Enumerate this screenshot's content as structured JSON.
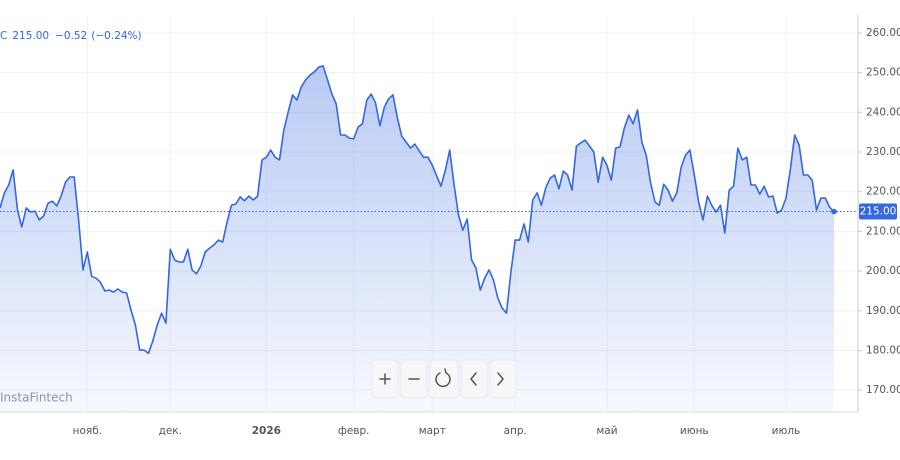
{
  "chart_data": {
    "type": "line",
    "header": {
      "prefix": "C",
      "close": "215.00",
      "change": "−0.52",
      "change_pct": "(−0.24%)"
    },
    "watermark": "InstaFintech",
    "last_value_label": "215.00",
    "color": "#3567e0",
    "grid": true,
    "categories": [
      null,
      null,
      null,
      null,
      null,
      null,
      null,
      null,
      null,
      null,
      null,
      null,
      null,
      null,
      null,
      null,
      null,
      null,
      null,
      null,
      "нояб.",
      null,
      null,
      null,
      null,
      null,
      null,
      null,
      null,
      null,
      null,
      null,
      null,
      null,
      null,
      null,
      null,
      null,
      null,
      "дек.",
      null,
      null,
      null,
      null,
      null,
      null,
      null,
      null,
      null,
      null,
      null,
      null,
      null,
      null,
      null,
      null,
      null,
      null,
      null,
      null,
      null,
      "2026",
      null,
      null,
      null,
      null,
      null,
      null,
      null,
      null,
      null,
      null,
      null,
      null,
      null,
      null,
      null,
      null,
      null,
      null,
      null,
      "февр.",
      null,
      null,
      null,
      null,
      null,
      null,
      null,
      null,
      null,
      null,
      null,
      null,
      null,
      null,
      null,
      null,
      null,
      "март",
      null,
      null,
      null,
      null,
      null,
      null,
      null,
      null,
      null,
      null,
      null,
      null,
      null,
      null,
      null,
      null,
      null,
      null,
      "апр.",
      null,
      null,
      null,
      null,
      null,
      null,
      null,
      null,
      null,
      null,
      null,
      null,
      null,
      null,
      null,
      null,
      null,
      null,
      null,
      null,
      "май",
      null,
      null,
      null,
      null,
      null,
      null,
      null,
      null,
      null,
      null,
      null,
      null,
      null,
      null,
      null,
      null,
      null,
      null,
      null,
      "июнь",
      null,
      null,
      null,
      null,
      null,
      null,
      null,
      null,
      null,
      null,
      null,
      null,
      null,
      null,
      null,
      null,
      null,
      null,
      null,
      null,
      "июль",
      null,
      null,
      null,
      null,
      null,
      null,
      null,
      null,
      null,
      null,
      null
    ],
    "values": [
      215.9,
      219.7,
      221.7,
      225.5,
      215.4,
      211.1,
      215.9,
      214.9,
      215.1,
      212.9,
      213.9,
      217.1,
      217.6,
      216.4,
      218.9,
      222.4,
      223.7,
      223.7,
      212.9,
      200.3,
      204.8,
      198.7,
      198.2,
      197.2,
      195.0,
      195.2,
      194.7,
      195.5,
      194.7,
      194.5,
      190.2,
      186.4,
      180.1,
      180.1,
      179.3,
      182.4,
      186.4,
      189.4,
      186.9,
      205.5,
      202.8,
      202.3,
      202.3,
      205.5,
      200.3,
      199.3,
      201.3,
      204.8,
      205.8,
      206.6,
      207.8,
      207.3,
      212.4,
      216.6,
      216.9,
      218.7,
      217.7,
      218.9,
      217.9,
      218.9,
      228.0,
      228.7,
      230.5,
      228.7,
      228.0,
      235.5,
      240.1,
      244.4,
      243.1,
      246.4,
      248.2,
      249.4,
      250.2,
      251.4,
      251.7,
      248.2,
      244.6,
      242.1,
      234.3,
      234.3,
      233.5,
      233.3,
      236.3,
      237.1,
      243.1,
      244.6,
      242.4,
      236.6,
      241.3,
      243.4,
      244.4,
      238.6,
      234.0,
      232.5,
      231.0,
      232.0,
      230.3,
      228.7,
      228.7,
      226.7,
      224.0,
      221.4,
      225.5,
      230.5,
      221.7,
      214.1,
      210.3,
      213.1,
      202.8,
      200.8,
      195.2,
      198.2,
      200.3,
      197.8,
      193.2,
      190.7,
      189.4,
      199.8,
      207.8,
      207.8,
      211.9,
      207.3,
      217.9,
      219.7,
      216.6,
      221.0,
      223.4,
      224.2,
      220.7,
      225.2,
      224.2,
      220.4,
      231.5,
      232.3,
      233.0,
      231.5,
      230.0,
      222.4,
      228.7,
      226.7,
      222.9,
      231.0,
      231.3,
      236.1,
      239.3,
      237.1,
      240.6,
      232.5,
      229.2,
      222.2,
      217.4,
      216.6,
      221.9,
      220.4,
      217.6,
      219.7,
      226.2,
      229.2,
      230.5,
      224.2,
      217.4,
      212.9,
      218.9,
      216.6,
      214.9,
      216.6,
      209.6,
      220.4,
      221.4,
      231.0,
      228.0,
      228.7,
      221.7,
      221.7,
      219.4,
      221.4,
      218.7,
      218.9,
      214.6,
      215.4,
      218.4,
      225.5,
      234.3,
      231.8,
      224.2,
      224.2,
      222.9,
      215.4,
      218.4,
      218.4,
      216.1,
      215.0
    ],
    "ylim": [
      164.5,
      268.3
    ],
    "yticks": [
      {
        "value": 170,
        "label": "170.00"
      },
      {
        "value": 180,
        "label": "180.00"
      },
      {
        "value": 190,
        "label": "190.00"
      },
      {
        "value": 200,
        "label": "200.00"
      },
      {
        "value": 210,
        "label": "210.00"
      },
      {
        "value": 220,
        "label": "220.00"
      },
      {
        "value": 230,
        "label": "230.00"
      },
      {
        "value": 240,
        "label": "240.00"
      },
      {
        "value": 250,
        "label": "250.00"
      },
      {
        "value": 260,
        "label": "260.00"
      }
    ]
  }
}
